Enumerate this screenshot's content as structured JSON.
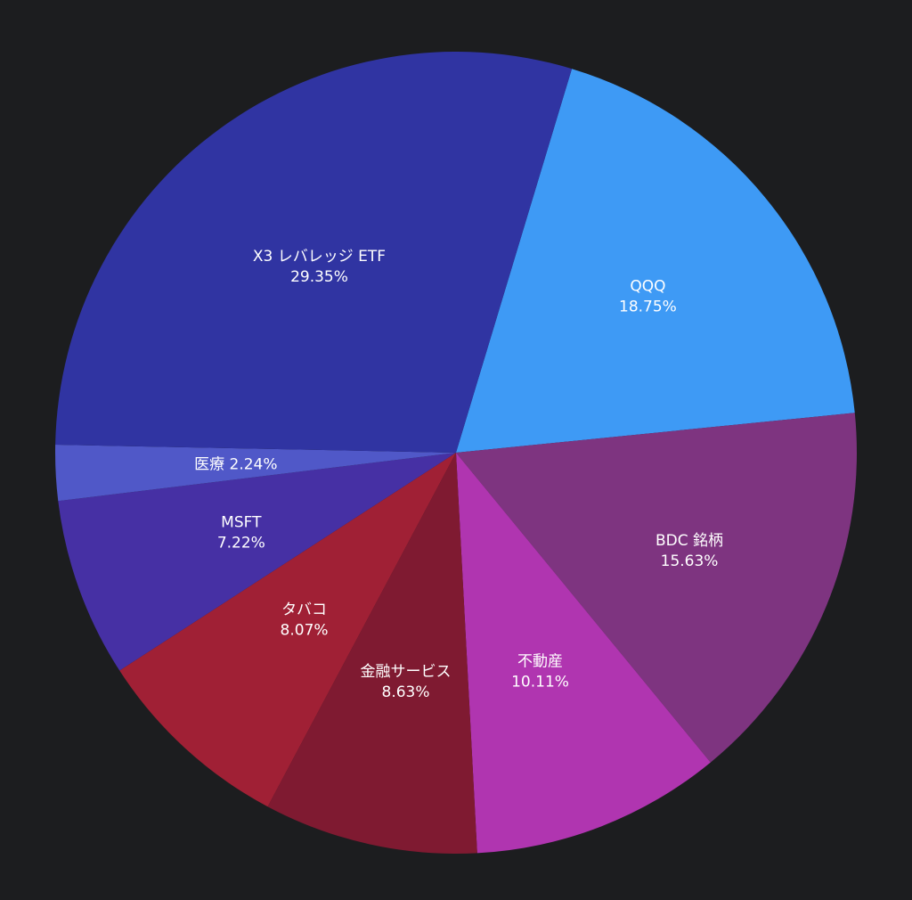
{
  "chart_data": {
    "type": "pie",
    "start_angle_deg": -73.2,
    "direction": "clockwise",
    "slices": [
      {
        "name": "QQQ",
        "value": 18.75,
        "percent_label": "18.75%",
        "color": "#3e9af5"
      },
      {
        "name": "BDC 銘柄",
        "value": 15.63,
        "percent_label": "15.63%",
        "color": "#7e3480"
      },
      {
        "name": "不動産",
        "value": 10.11,
        "percent_label": "10.11%",
        "color": "#b035b0"
      },
      {
        "name": "金融サービス",
        "value": 8.63,
        "percent_label": "8.63%",
        "color": "#7f1a31"
      },
      {
        "name": "タバコ",
        "value": 8.07,
        "percent_label": "8.07%",
        "color": "#a02035"
      },
      {
        "name": "MSFT",
        "value": 7.22,
        "percent_label": "7.22%",
        "color": "#4630a4"
      },
      {
        "name": "医療",
        "value": 2.24,
        "percent_label": "2.24%",
        "color": "#5058c8",
        "inline_label": true
      },
      {
        "name": "X3 レバレッジ ETF",
        "value": 29.35,
        "percent_label": "29.35%",
        "color": "#3034a2"
      }
    ]
  }
}
